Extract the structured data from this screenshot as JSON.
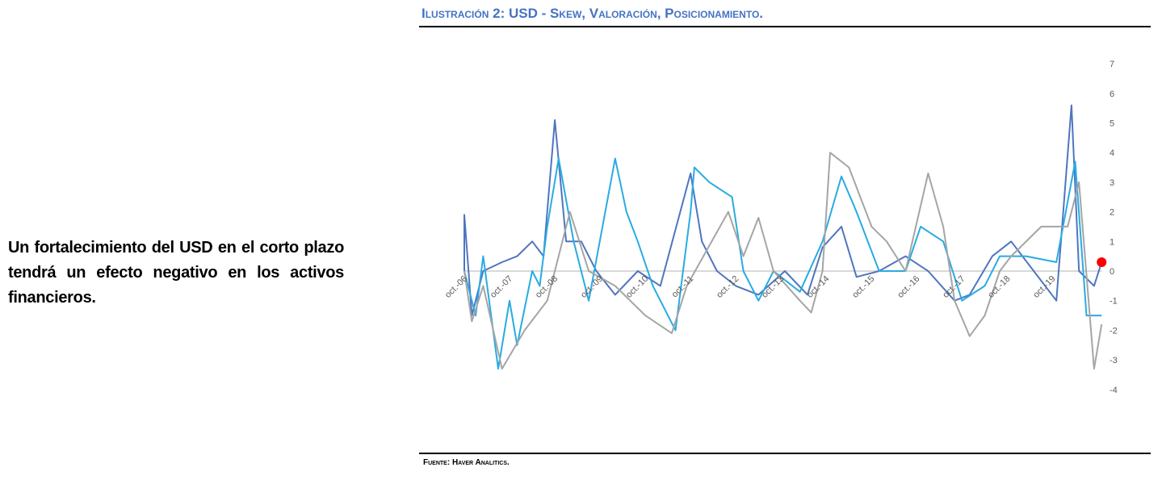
{
  "side_text": "Un fortalecimiento del USD en el corto plazo tendrá un efecto negativo en los activos financieros.",
  "figure": {
    "title": "Ilustración 2: USD - Skew, Valoración, Posicionamiento.",
    "source": "Fuente: Haver Analitics."
  },
  "chart_data": {
    "type": "line",
    "title": "",
    "xlabel": "",
    "ylabel": "",
    "ylim": [
      -4,
      7
    ],
    "y_ticks": [
      "7",
      "6",
      "5",
      "4",
      "3",
      "2",
      "1",
      "0",
      "-1",
      "-2",
      "-3",
      "-4"
    ],
    "x_ticks": [
      "oct.-06",
      "oct.-07",
      "oct.-08",
      "oct.-09",
      "oct.-10",
      "oct.-11",
      "oct.-12",
      "oct.-13",
      "oct.-14",
      "oct.-15",
      "oct.-16",
      "oct.-17",
      "oct.-18",
      "oct.-19"
    ],
    "xlim": [
      "2006-10",
      "2020-11"
    ],
    "y_axis_position": "right",
    "grid": false,
    "zero_line": true,
    "series": [
      {
        "color": "#4F75C0",
        "points": [
          [
            "2006-10",
            0
          ],
          [
            "2006-10",
            1.9
          ],
          [
            "2006-11",
            0.2
          ],
          [
            "2006-12",
            -1.5
          ],
          [
            "2007-03",
            0
          ],
          [
            "2007-08",
            0.3
          ],
          [
            "2007-12",
            0.5
          ],
          [
            "2008-04",
            1
          ],
          [
            "2008-07",
            0.5
          ],
          [
            "2008-10",
            5.1
          ],
          [
            "2009-01",
            1
          ],
          [
            "2009-05",
            1
          ],
          [
            "2009-09",
            0
          ],
          [
            "2010-02",
            -0.8
          ],
          [
            "2010-08",
            0
          ],
          [
            "2011-02",
            -0.5
          ],
          [
            "2011-10",
            3.3
          ],
          [
            "2012-01",
            1
          ],
          [
            "2012-05",
            0
          ],
          [
            "2012-10",
            -0.5
          ],
          [
            "2013-04",
            -0.8
          ],
          [
            "2013-11",
            0
          ],
          [
            "2014-05",
            -0.8
          ],
          [
            "2014-09",
            0.8
          ],
          [
            "2015-02",
            1.5
          ],
          [
            "2015-06",
            -0.2
          ],
          [
            "2015-12",
            0
          ],
          [
            "2016-07",
            0.5
          ],
          [
            "2017-01",
            0
          ],
          [
            "2017-08",
            -1
          ],
          [
            "2017-12",
            -0.8
          ],
          [
            "2018-06",
            0.5
          ],
          [
            "2018-11",
            1
          ],
          [
            "2019-05",
            0
          ],
          [
            "2019-11",
            -1
          ],
          [
            "2020-03",
            5.6
          ],
          [
            "2020-05",
            0
          ],
          [
            "2020-09",
            -0.5
          ],
          [
            "2020-11",
            0.3
          ]
        ]
      },
      {
        "color": "#29ABE2",
        "points": [
          [
            "2006-10",
            0
          ],
          [
            "2007-01",
            -1.5
          ],
          [
            "2007-03",
            0.5
          ],
          [
            "2007-07",
            -3.3
          ],
          [
            "2007-10",
            -1
          ],
          [
            "2007-12",
            -2.5
          ],
          [
            "2008-04",
            0
          ],
          [
            "2008-06",
            -0.5
          ],
          [
            "2008-08",
            1.5
          ],
          [
            "2008-11",
            3.8
          ],
          [
            "2009-03",
            1
          ],
          [
            "2009-07",
            -1
          ],
          [
            "2010-02",
            3.8
          ],
          [
            "2010-05",
            2
          ],
          [
            "2010-08",
            1
          ],
          [
            "2010-12",
            -0.5
          ],
          [
            "2011-06",
            -2
          ],
          [
            "2011-10",
            2
          ],
          [
            "2011-11",
            3.5
          ],
          [
            "2012-03",
            3
          ],
          [
            "2012-09",
            2.5
          ],
          [
            "2012-12",
            0
          ],
          [
            "2013-04",
            -1
          ],
          [
            "2013-08",
            0
          ],
          [
            "2014-03",
            -0.7
          ],
          [
            "2014-09",
            1
          ],
          [
            "2015-02",
            3.2
          ],
          [
            "2015-06",
            2
          ],
          [
            "2015-12",
            0
          ],
          [
            "2016-07",
            0
          ],
          [
            "2016-11",
            1.5
          ],
          [
            "2017-05",
            1
          ],
          [
            "2017-10",
            -1
          ],
          [
            "2018-04",
            -0.5
          ],
          [
            "2018-08",
            0.5
          ],
          [
            "2019-03",
            0.5
          ],
          [
            "2019-11",
            0.3
          ],
          [
            "2020-04",
            3.7
          ],
          [
            "2020-07",
            -1.5
          ],
          [
            "2020-11",
            -1.5
          ]
        ]
      },
      {
        "color": "#A5A5A5",
        "points": [
          [
            "2006-10",
            0
          ],
          [
            "2006-12",
            -1.7
          ],
          [
            "2007-03",
            -0.5
          ],
          [
            "2007-08",
            -3.3
          ],
          [
            "2008-02",
            -2
          ],
          [
            "2008-08",
            -1
          ],
          [
            "2009-02",
            2
          ],
          [
            "2009-07",
            0
          ],
          [
            "2010-02",
            -0.5
          ],
          [
            "2010-10",
            -1.5
          ],
          [
            "2011-05",
            -2.1
          ],
          [
            "2011-09",
            -0.5
          ],
          [
            "2012-08",
            2
          ],
          [
            "2012-12",
            0.5
          ],
          [
            "2013-04",
            1.8
          ],
          [
            "2013-08",
            0
          ],
          [
            "2014-03",
            -1
          ],
          [
            "2014-06",
            -1.4
          ],
          [
            "2014-09",
            0
          ],
          [
            "2014-11",
            4
          ],
          [
            "2015-04",
            3.5
          ],
          [
            "2015-10",
            1.5
          ],
          [
            "2016-02",
            1
          ],
          [
            "2016-07",
            0
          ],
          [
            "2017-01",
            3.3
          ],
          [
            "2017-05",
            1.5
          ],
          [
            "2017-08",
            -1
          ],
          [
            "2017-12",
            -2.2
          ],
          [
            "2018-04",
            -1.5
          ],
          [
            "2018-08",
            0
          ],
          [
            "2018-11",
            0.5
          ],
          [
            "2019-07",
            1.5
          ],
          [
            "2020-02",
            1.5
          ],
          [
            "2020-05",
            3
          ],
          [
            "2020-09",
            -3.3
          ],
          [
            "2020-11",
            -1.8
          ]
        ]
      }
    ],
    "highlight_point": {
      "x": "2020-11",
      "y": 0.3,
      "color": "#FF0000"
    }
  }
}
